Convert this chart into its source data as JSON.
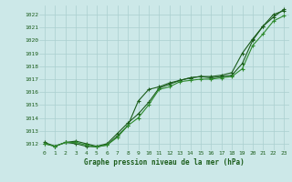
{
  "x": [
    0,
    1,
    2,
    3,
    4,
    5,
    6,
    7,
    8,
    9,
    10,
    11,
    12,
    13,
    14,
    15,
    16,
    17,
    18,
    19,
    20,
    21,
    22,
    23
  ],
  "line1": [
    1012.0,
    1011.8,
    1012.1,
    1012.2,
    1012.0,
    1011.8,
    1012.0,
    1012.8,
    1013.6,
    1014.3,
    1015.2,
    1016.3,
    1016.6,
    1016.9,
    1017.1,
    1017.2,
    1017.1,
    1017.2,
    1017.3,
    1018.2,
    1020.0,
    1021.1,
    1022.0,
    1022.3
  ],
  "line2": [
    1012.1,
    1011.8,
    1012.1,
    1012.0,
    1011.8,
    1011.75,
    1011.9,
    1012.6,
    1013.4,
    1015.3,
    1016.2,
    1016.4,
    1016.7,
    1016.9,
    1017.1,
    1017.2,
    1017.2,
    1017.3,
    1017.5,
    1019.0,
    1020.1,
    1021.1,
    1021.8,
    1022.4
  ],
  "line3": [
    1012.0,
    1011.8,
    1012.1,
    1012.1,
    1011.9,
    1011.75,
    1011.9,
    1012.5,
    1013.4,
    1014.0,
    1015.0,
    1016.2,
    1016.4,
    1016.8,
    1016.9,
    1017.0,
    1017.0,
    1017.1,
    1017.2,
    1017.8,
    1019.6,
    1020.5,
    1021.5,
    1021.9
  ],
  "line_color_dark": "#1a5c1a",
  "line_color_mid": "#2d8a2d",
  "bg_color": "#cce8e8",
  "grid_color": "#aacfcf",
  "text_color": "#1a5c1a",
  "title": "Graphe pression niveau de la mer (hPa)",
  "ylim_min": 1011.5,
  "ylim_max": 1022.7,
  "yticks": [
    1012,
    1013,
    1014,
    1015,
    1016,
    1017,
    1018,
    1019,
    1020,
    1021,
    1022
  ],
  "xticks": [
    0,
    1,
    2,
    3,
    4,
    5,
    6,
    7,
    8,
    9,
    10,
    11,
    12,
    13,
    14,
    15,
    16,
    17,
    18,
    19,
    20,
    21,
    22,
    23
  ],
  "marker": "+",
  "markersize": 3.5,
  "linewidth": 0.8
}
